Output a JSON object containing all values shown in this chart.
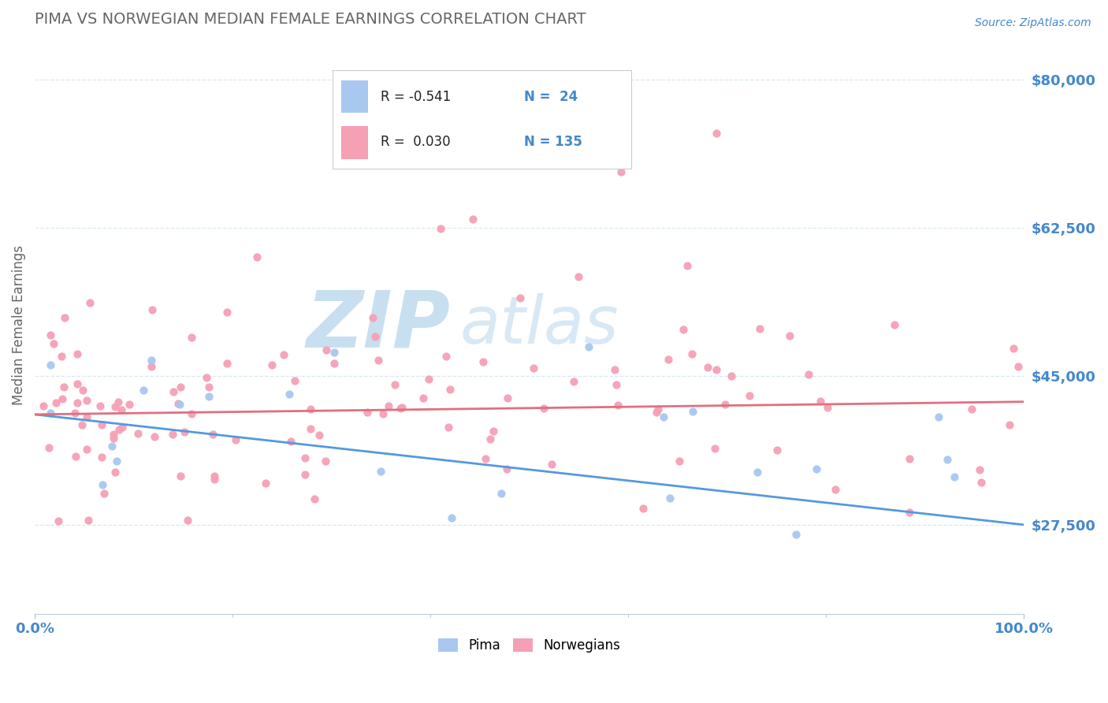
{
  "title": "PIMA VS NORWEGIAN MEDIAN FEMALE EARNINGS CORRELATION CHART",
  "source": "Source: ZipAtlas.com",
  "ylabel": "Median Female Earnings",
  "xlim": [
    0.0,
    1.0
  ],
  "ylim": [
    17000,
    85000
  ],
  "yticks": [
    27500,
    45000,
    62500,
    80000
  ],
  "ytick_labels": [
    "$27,500",
    "$45,000",
    "$62,500",
    "$80,000"
  ],
  "xtick_labels": [
    "0.0%",
    "100.0%"
  ],
  "legend_r1": "R = -0.541",
  "legend_n1": "N =  24",
  "legend_r2": "R =  0.030",
  "legend_n2": "N = 135",
  "pima_color": "#a8c8f0",
  "norwegian_color": "#f5a0b5",
  "pima_line_color": "#5599dd",
  "norwegian_line_color": "#e07080",
  "title_color": "#666666",
  "axis_label_color": "#4488cc",
  "watermark_zip_color": "#c8dff0",
  "watermark_atlas_color": "#d8e8f5",
  "background_color": "#ffffff",
  "grid_color": "#d8e8f0",
  "pima_R": -0.541,
  "pima_N": 24,
  "norwegian_R": 0.03,
  "norwegian_N": 135
}
